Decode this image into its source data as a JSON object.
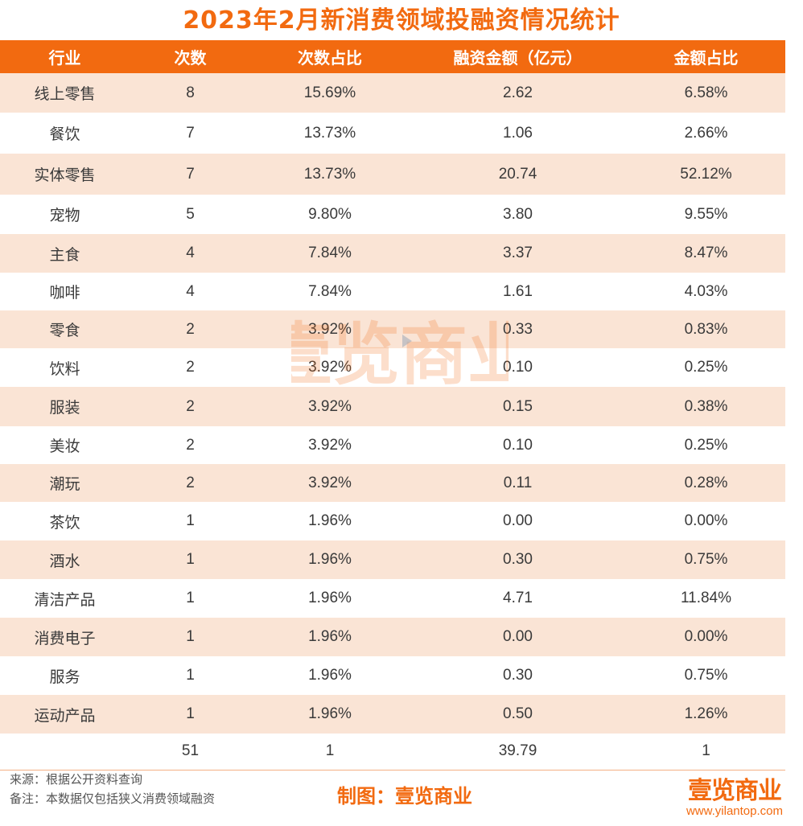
{
  "title": "2023年2月新消费领域投融资情况统计",
  "table": {
    "headers": [
      "行业",
      "次数",
      "次数占比",
      "融资金额（亿元）",
      "金额占比"
    ],
    "rows": [
      [
        "线上零售",
        "8",
        "15.69%",
        "2.62",
        "6.58%"
      ],
      [
        "餐饮",
        "7",
        "13.73%",
        "1.06",
        "2.66%"
      ],
      [
        "实体零售",
        "7",
        "13.73%",
        "20.74",
        "52.12%"
      ],
      [
        "宠物",
        "5",
        "9.80%",
        "3.80",
        "9.55%"
      ],
      [
        "主食",
        "4",
        "7.84%",
        "3.37",
        "8.47%"
      ],
      [
        "咖啡",
        "4",
        "7.84%",
        "1.61",
        "4.03%"
      ],
      [
        "零食",
        "2",
        "3.92%",
        "0.33",
        "0.83%"
      ],
      [
        "饮料",
        "2",
        "3.92%",
        "0.10",
        "0.25%"
      ],
      [
        "服装",
        "2",
        "3.92%",
        "0.15",
        "0.38%"
      ],
      [
        "美妆",
        "2",
        "3.92%",
        "0.10",
        "0.25%"
      ],
      [
        "潮玩",
        "2",
        "3.92%",
        "0.11",
        "0.28%"
      ],
      [
        "茶饮",
        "1",
        "1.96%",
        "0.00",
        "0.00%"
      ],
      [
        "酒水",
        "1",
        "1.96%",
        "0.30",
        "0.75%"
      ],
      [
        "清洁产品",
        "1",
        "1.96%",
        "4.71",
        "11.84%"
      ],
      [
        "消费电子",
        "1",
        "1.96%",
        "0.00",
        "0.00%"
      ],
      [
        "服务",
        "1",
        "1.96%",
        "0.30",
        "0.75%"
      ],
      [
        "运动产品",
        "1",
        "1.96%",
        "0.50",
        "1.26%"
      ]
    ],
    "total": [
      "",
      "51",
      "1",
      "39.79",
      "1"
    ]
  },
  "watermark_text": "壹览商业",
  "footer": {
    "source": "来源：根据公开资料查询",
    "note": "备注：本数据仅包括狭义消费领域融资",
    "credit": "制图：壹览商业",
    "logo": "壹览商业",
    "url": "www.yilantop.com"
  },
  "colors": {
    "accent": "#f26a10",
    "row_shade": "#fae4d5"
  }
}
